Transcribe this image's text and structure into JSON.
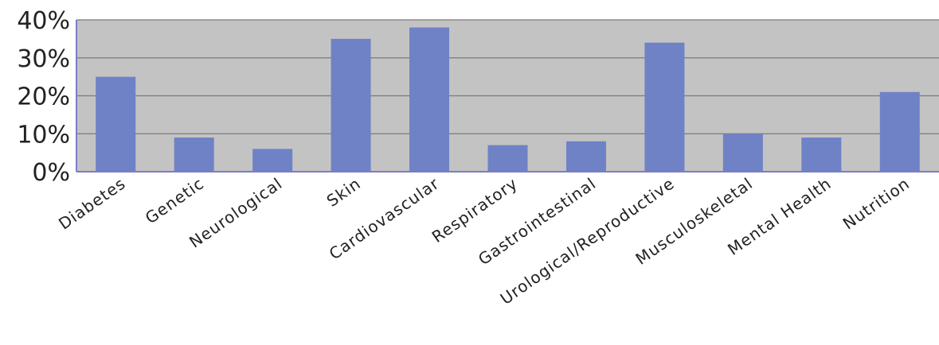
{
  "chart_data": {
    "type": "bar",
    "title": "",
    "xlabel": "",
    "ylabel": "",
    "categories": [
      "Diabetes",
      "Genetic",
      "Neurological",
      "Skin",
      "Cardiovascular",
      "Respiratory",
      "Gastrointestinal",
      "Urological/Reproductive",
      "Musculoskeletal",
      "Mental  Health",
      "Nutrition"
    ],
    "values": [
      25,
      9,
      6,
      35,
      38,
      7,
      8,
      34,
      10,
      9,
      21
    ],
    "ylim": [
      0,
      40
    ],
    "yticks": [
      "0%",
      "10%",
      "20%",
      "30%",
      "40%"
    ],
    "grid": true,
    "legend": "none",
    "colors": {
      "bar": "#6f82c6",
      "plot_background": "#c3c3c3",
      "gridline": "#7a7a7a",
      "axis": "#7c7cc8"
    }
  }
}
